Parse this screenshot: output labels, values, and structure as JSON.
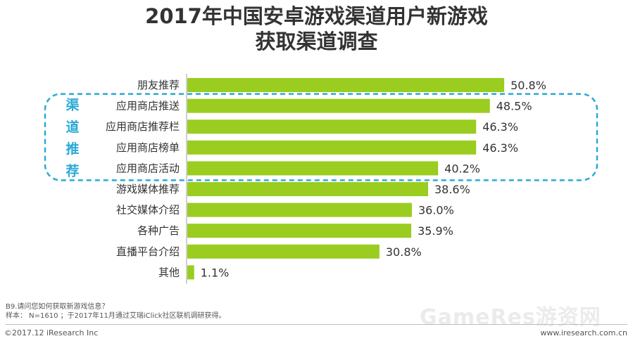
{
  "chart_data": {
    "type": "bar",
    "orientation": "horizontal",
    "title": "2017年中国安卓游戏渠道用户新游戏",
    "title_line2": "获取渠道调查",
    "categories": [
      "朋友推荐",
      "应用商店推送",
      "应用商店推荐栏",
      "应用商店榜单",
      "应用商店活动",
      "游戏媒体推荐",
      "社交媒体介绍",
      "各种广告",
      "直播平台介绍",
      "其他"
    ],
    "values": [
      50.8,
      48.5,
      46.3,
      46.3,
      40.2,
      38.6,
      36.0,
      35.9,
      30.8,
      1.1
    ],
    "value_labels": [
      "50.8%",
      "48.5%",
      "46.3%",
      "46.3%",
      "40.2%",
      "38.6%",
      "36.0%",
      "35.9%",
      "30.8%",
      "1.1%"
    ],
    "xlim": [
      0,
      100
    ],
    "bar_color": "#9acd1f",
    "highlight": {
      "label": "渠道推荐",
      "covers_categories": [
        "应用商店推送",
        "应用商店推荐栏",
        "应用商店榜单",
        "应用商店活动"
      ],
      "color": "#2aaad6"
    }
  },
  "footnotes": {
    "question": "B9.请问您如何获取新游戏信息？",
    "sample": "样本： N=1610 ；于2017年11月通过艾瑞iClick社区联机调研获得。"
  },
  "footer": {
    "copyright": "©2017.12 iResearch Inc",
    "site": "www.iresearch.com.cn"
  },
  "watermark": "GameRes游资网"
}
